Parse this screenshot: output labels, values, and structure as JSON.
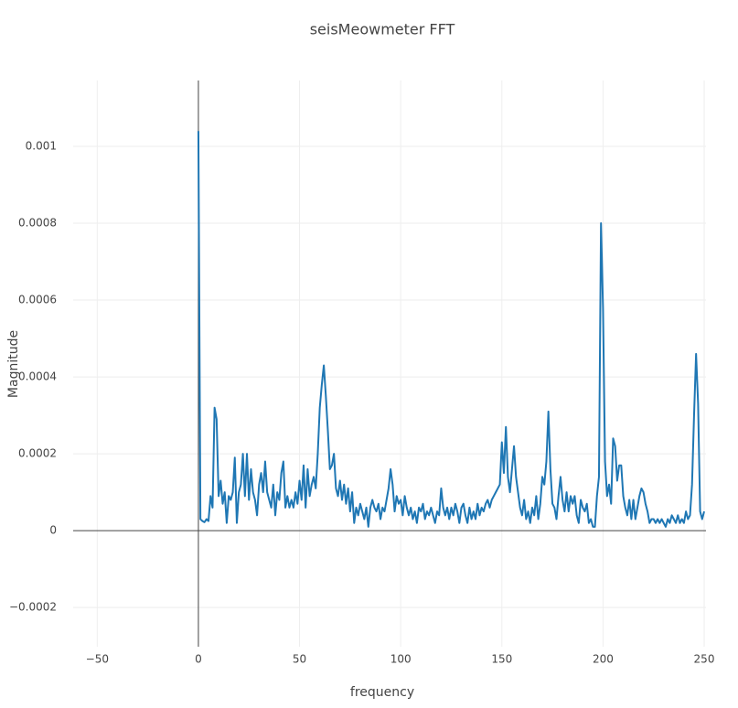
{
  "chart_data": {
    "type": "line",
    "title": "seisMeowmeter FFT",
    "xlabel": "frequency",
    "ylabel": "Magnitude",
    "xlim": [
      -61.9,
      250.9
    ],
    "ylim": [
      -0.000302,
      0.0011714
    ],
    "xticks": [
      {
        "value": -50,
        "label": "−50"
      },
      0,
      50,
      100,
      150,
      200,
      250
    ],
    "yticks": [
      {
        "value": -0.0002,
        "label": "−0.0002"
      },
      0,
      0.0002,
      0.0004,
      0.0006,
      0.0008,
      0.001
    ],
    "grid": true,
    "zeroline": true,
    "x": [
      0,
      1,
      2,
      3,
      4,
      5,
      6,
      7,
      8,
      9,
      10,
      11,
      12,
      13,
      14,
      15,
      16,
      17,
      18,
      19,
      20,
      21,
      22,
      23,
      24,
      25,
      26,
      27,
      28,
      29,
      30,
      31,
      32,
      33,
      34,
      35,
      36,
      37,
      38,
      39,
      40,
      41,
      42,
      43,
      44,
      45,
      46,
      47,
      48,
      49,
      50,
      51,
      52,
      53,
      54,
      55,
      56,
      57,
      58,
      59,
      60,
      61,
      62,
      63,
      64,
      65,
      66,
      67,
      68,
      69,
      70,
      71,
      72,
      73,
      74,
      75,
      76,
      77,
      78,
      79,
      80,
      81,
      82,
      83,
      84,
      85,
      86,
      87,
      88,
      89,
      90,
      91,
      92,
      93,
      94,
      95,
      96,
      97,
      98,
      99,
      100,
      101,
      102,
      103,
      104,
      105,
      106,
      107,
      108,
      109,
      110,
      111,
      112,
      113,
      114,
      115,
      116,
      117,
      118,
      119,
      120,
      121,
      122,
      123,
      124,
      125,
      126,
      127,
      128,
      129,
      130,
      131,
      132,
      133,
      134,
      135,
      136,
      137,
      138,
      139,
      140,
      141,
      142,
      143,
      144,
      145,
      146,
      147,
      148,
      149,
      150,
      151,
      152,
      153,
      154,
      155,
      156,
      157,
      158,
      159,
      160,
      161,
      162,
      163,
      164,
      165,
      166,
      167,
      168,
      169,
      170,
      171,
      172,
      173,
      174,
      175,
      176,
      177,
      178,
      179,
      180,
      181,
      182,
      183,
      184,
      185,
      186,
      187,
      188,
      189,
      190,
      191,
      192,
      193,
      194,
      195,
      196,
      197,
      198,
      199,
      200,
      201,
      202,
      203,
      204,
      205,
      206,
      207,
      208,
      209,
      210,
      211,
      212,
      213,
      214,
      215,
      216,
      217,
      218,
      219,
      220,
      221,
      222,
      223,
      224,
      225,
      226,
      227,
      228,
      229,
      230,
      231,
      232,
      233,
      234,
      235,
      236,
      237,
      238,
      239,
      240,
      241,
      242,
      243,
      244,
      245,
      246,
      247,
      248,
      249,
      250
    ],
    "series": [
      {
        "name": "FFT",
        "color": "#1f77b4",
        "values": [
          0.00104,
          3e-05,
          2.5e-05,
          2.2e-05,
          3e-05,
          2.5e-05,
          9e-05,
          6e-05,
          0.00032,
          0.00029,
          9e-05,
          0.00013,
          7e-05,
          0.0001,
          2e-05,
          9e-05,
          8e-05,
          0.0001,
          0.00019,
          2e-05,
          0.0001,
          0.00012,
          0.0002,
          9e-05,
          0.0002,
          8e-05,
          0.00016,
          0.0001,
          8e-05,
          4e-05,
          0.00012,
          0.00015,
          0.0001,
          0.00018,
          0.0001,
          8e-05,
          6e-05,
          0.00012,
          4e-05,
          0.0001,
          8e-05,
          0.00015,
          0.00018,
          6e-05,
          9e-05,
          6e-05,
          8e-05,
          6e-05,
          0.0001,
          7e-05,
          0.00013,
          8e-05,
          0.00017,
          6e-05,
          0.00016,
          9e-05,
          0.00012,
          0.00014,
          0.00011,
          0.0002,
          0.00032,
          0.00038,
          0.00043,
          0.00035,
          0.00026,
          0.00016,
          0.00017,
          0.0002,
          0.00011,
          9e-05,
          0.00013,
          8e-05,
          0.00012,
          7e-05,
          0.00011,
          5e-05,
          0.0001,
          2e-05,
          6e-05,
          4e-05,
          7e-05,
          5e-05,
          3e-05,
          6e-05,
          1e-05,
          6e-05,
          8e-05,
          6e-05,
          5e-05,
          7e-05,
          3e-05,
          6e-05,
          5e-05,
          8e-05,
          0.00011,
          0.00016,
          0.00012,
          5e-05,
          9e-05,
          7e-05,
          8e-05,
          4e-05,
          9e-05,
          6e-05,
          4e-05,
          6e-05,
          3e-05,
          5e-05,
          2e-05,
          6e-05,
          5e-05,
          7e-05,
          3e-05,
          5e-05,
          4e-05,
          6e-05,
          4e-05,
          2e-05,
          5e-05,
          4e-05,
          0.00011,
          6e-05,
          4e-05,
          6e-05,
          3e-05,
          6e-05,
          4e-05,
          7e-05,
          5e-05,
          2e-05,
          6e-05,
          7e-05,
          4e-05,
          2e-05,
          6e-05,
          3e-05,
          5e-05,
          3e-05,
          7e-05,
          4e-05,
          6e-05,
          5e-05,
          7e-05,
          8e-05,
          6e-05,
          8e-05,
          9e-05,
          0.0001,
          0.00011,
          0.00012,
          0.00023,
          0.00015,
          0.00027,
          0.00014,
          0.0001,
          0.00016,
          0.00022,
          0.00014,
          0.0001,
          6e-05,
          4e-05,
          8e-05,
          3e-05,
          5e-05,
          2e-05,
          6e-05,
          4e-05,
          9e-05,
          3e-05,
          7e-05,
          0.00014,
          0.00012,
          0.00018,
          0.00031,
          0.00016,
          7e-05,
          6e-05,
          3e-05,
          9e-05,
          0.00014,
          8e-05,
          5e-05,
          0.0001,
          5e-05,
          9e-05,
          7e-05,
          9e-05,
          4e-05,
          2e-05,
          8e-05,
          6e-05,
          5e-05,
          7e-05,
          2e-05,
          3e-05,
          1e-05,
          1e-05,
          9e-05,
          0.00014,
          0.0008,
          0.00058,
          0.00018,
          9e-05,
          0.00012,
          7e-05,
          0.00024,
          0.00022,
          0.00013,
          0.00017,
          0.00017,
          9e-05,
          6e-05,
          4e-05,
          8e-05,
          3e-05,
          8e-05,
          3e-05,
          6e-05,
          9e-05,
          0.00011,
          0.0001,
          7e-05,
          5e-05,
          2e-05,
          3e-05,
          3e-05,
          2e-05,
          3e-05,
          2e-05,
          3e-05,
          2e-05,
          1e-05,
          3e-05,
          2e-05,
          4e-05,
          3e-05,
          2e-05,
          4e-05,
          2e-05,
          3e-05,
          2e-05,
          5e-05,
          3e-05,
          4e-05,
          0.00012,
          0.0003,
          0.00046,
          0.00033,
          5e-05,
          3e-05,
          5e-05
        ]
      }
    ]
  }
}
